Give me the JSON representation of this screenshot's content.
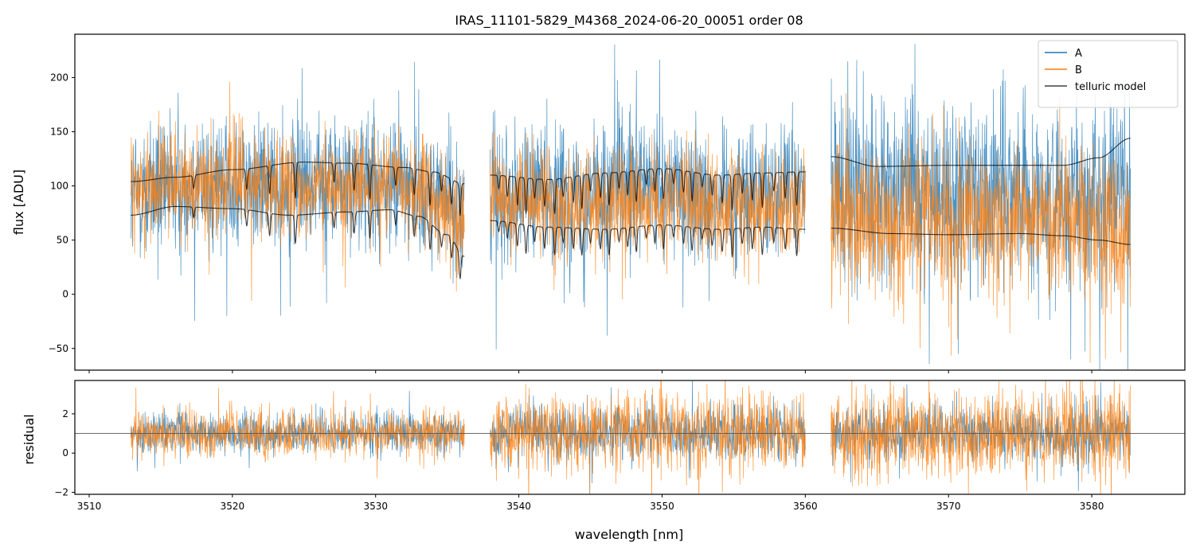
{
  "chart_data": [
    {
      "type": "line",
      "panel": "top",
      "title": "IRAS_11101-5829_M4368_2024-06-20_00051  order 08",
      "xlabel": "",
      "ylabel": "flux [ADU]",
      "xlim": [
        3509,
        3586.5
      ],
      "ylim": [
        -70,
        240
      ],
      "yticks": [
        -50,
        0,
        50,
        100,
        150,
        200
      ],
      "ytick_labels": [
        "−50",
        "0",
        "50",
        "100",
        "150",
        "200"
      ],
      "xticks": [
        3510,
        3520,
        3530,
        3540,
        3550,
        3560,
        3570,
        3580
      ],
      "legend": {
        "placement": "top-right",
        "entries": [
          {
            "label": "A",
            "color": "#1f77b4"
          },
          {
            "label": "B",
            "color": "#ff7f0e"
          },
          {
            "label": "telluric model",
            "color": "#000000"
          }
        ]
      },
      "segments": [
        {
          "x_range": [
            3512.9,
            3536.2
          ],
          "series": [
            {
              "name": "A",
              "color": "#1f77b4",
              "center": 95,
              "spread": 80,
              "approx": true
            },
            {
              "name": "B",
              "color": "#ff7f0e",
              "center": 82,
              "spread": 60,
              "approx": true
            }
          ],
          "telluric_upper": {
            "x": [
              3512.9,
              3516,
              3520,
              3525,
              3528,
              3532,
              3534,
              3536.2
            ],
            "y": [
              104,
              108,
              115,
              122,
              121,
              117,
              113,
              102
            ]
          },
          "telluric_lower": {
            "x": [
              3512.9,
              3516,
              3520,
              3524,
              3528,
              3531,
              3533,
              3535,
              3536.2
            ],
            "y": [
              73,
              81,
              79,
              73,
              76,
              78,
              72,
              55,
              35
            ]
          },
          "absorption_lines": [
            3517.3,
            3521.0,
            3522.6,
            3524.4,
            3527.1,
            3528.5,
            3529.6,
            3531.4,
            3532.7,
            3533.8,
            3534.6,
            3535.3,
            3535.9
          ]
        },
        {
          "x_range": [
            3538.0,
            3560.0
          ],
          "series": [
            {
              "name": "A",
              "color": "#1f77b4",
              "center": 105,
              "spread": 80,
              "approx": true
            },
            {
              "name": "B",
              "color": "#ff7f0e",
              "center": 80,
              "spread": 60,
              "approx": true
            }
          ],
          "telluric_upper": {
            "x": [
              3538.0,
              3542,
              3546,
              3550,
              3554,
              3557,
              3560.0
            ],
            "y": [
              110,
              106,
              112,
              116,
              110,
              112,
              113
            ]
          },
          "telluric_lower": {
            "x": [
              3538.0,
              3542,
              3546,
              3550,
              3554,
              3557,
              3560.0
            ],
            "y": [
              68,
              62,
              60,
              64,
              60,
              62,
              60
            ]
          },
          "absorption_lines": [
            3538.6,
            3539.2,
            3539.9,
            3540.5,
            3541.1,
            3541.8,
            3542.5,
            3543.1,
            3543.8,
            3544.4,
            3545.0,
            3545.7,
            3546.3,
            3547.0,
            3547.6,
            3548.2,
            3548.9,
            3549.5,
            3550.1,
            3550.8,
            3551.5,
            3552.1,
            3552.8,
            3553.5,
            3554.2,
            3554.9,
            3555.6,
            3556.3,
            3557.0,
            3557.8,
            3558.6,
            3559.4
          ]
        },
        {
          "x_range": [
            3561.8,
            3582.7
          ],
          "series": [
            {
              "name": "A",
              "color": "#1f77b4",
              "center": 100,
              "spread": 110,
              "approx": true
            },
            {
              "name": "B",
              "color": "#ff7f0e",
              "center": 55,
              "spread": 90,
              "approx": true
            }
          ],
          "telluric_upper": {
            "x": [
              3561.8,
              3565,
              3570,
              3575,
              3578,
              3580.5,
              3582.7
            ],
            "y": [
              127,
              118,
              119,
              119,
              119,
              126,
              144
            ]
          },
          "telluric_lower": {
            "x": [
              3561.8,
              3566,
              3570,
              3575,
              3578,
              3580.5,
              3582.7
            ],
            "y": [
              61,
              56,
              55,
              56,
              54,
              50,
              46
            ]
          },
          "absorption_lines": []
        }
      ]
    },
    {
      "type": "line",
      "panel": "bottom",
      "xlabel": "wavelength [nm]",
      "ylabel": "residual",
      "xlim": [
        3509,
        3586.5
      ],
      "ylim": [
        -2.1,
        3.7
      ],
      "yticks": [
        -2,
        0,
        2
      ],
      "ytick_labels": [
        "−2",
        "0",
        "2"
      ],
      "xticks": [
        3510,
        3520,
        3530,
        3540,
        3550,
        3560,
        3570,
        3580
      ],
      "xtick_labels": [
        "3510",
        "3520",
        "3530",
        "3540",
        "3550",
        "3560",
        "3570",
        "3580"
      ],
      "reference_line": 1.0,
      "segments": [
        {
          "x_range": [
            3512.9,
            3536.2
          ],
          "series": [
            {
              "name": "A",
              "color": "#1f77b4",
              "center": 1.0,
              "spread": 1.3,
              "approx": true
            },
            {
              "name": "B",
              "color": "#ff7f0e",
              "center": 1.0,
              "spread": 1.5,
              "approx": true
            }
          ]
        },
        {
          "x_range": [
            3538.0,
            3560.0
          ],
          "series": [
            {
              "name": "A",
              "color": "#1f77b4",
              "center": 1.0,
              "spread": 1.8,
              "approx": true
            },
            {
              "name": "B",
              "color": "#ff7f0e",
              "center": 1.0,
              "spread": 2.6,
              "approx": true
            }
          ]
        },
        {
          "x_range": [
            3561.8,
            3582.7
          ],
          "series": [
            {
              "name": "A",
              "color": "#1f77b4",
              "center": 1.0,
              "spread": 1.8,
              "approx": true
            },
            {
              "name": "B",
              "color": "#ff7f0e",
              "center": 1.0,
              "spread": 2.8,
              "approx": true
            }
          ]
        }
      ]
    }
  ]
}
